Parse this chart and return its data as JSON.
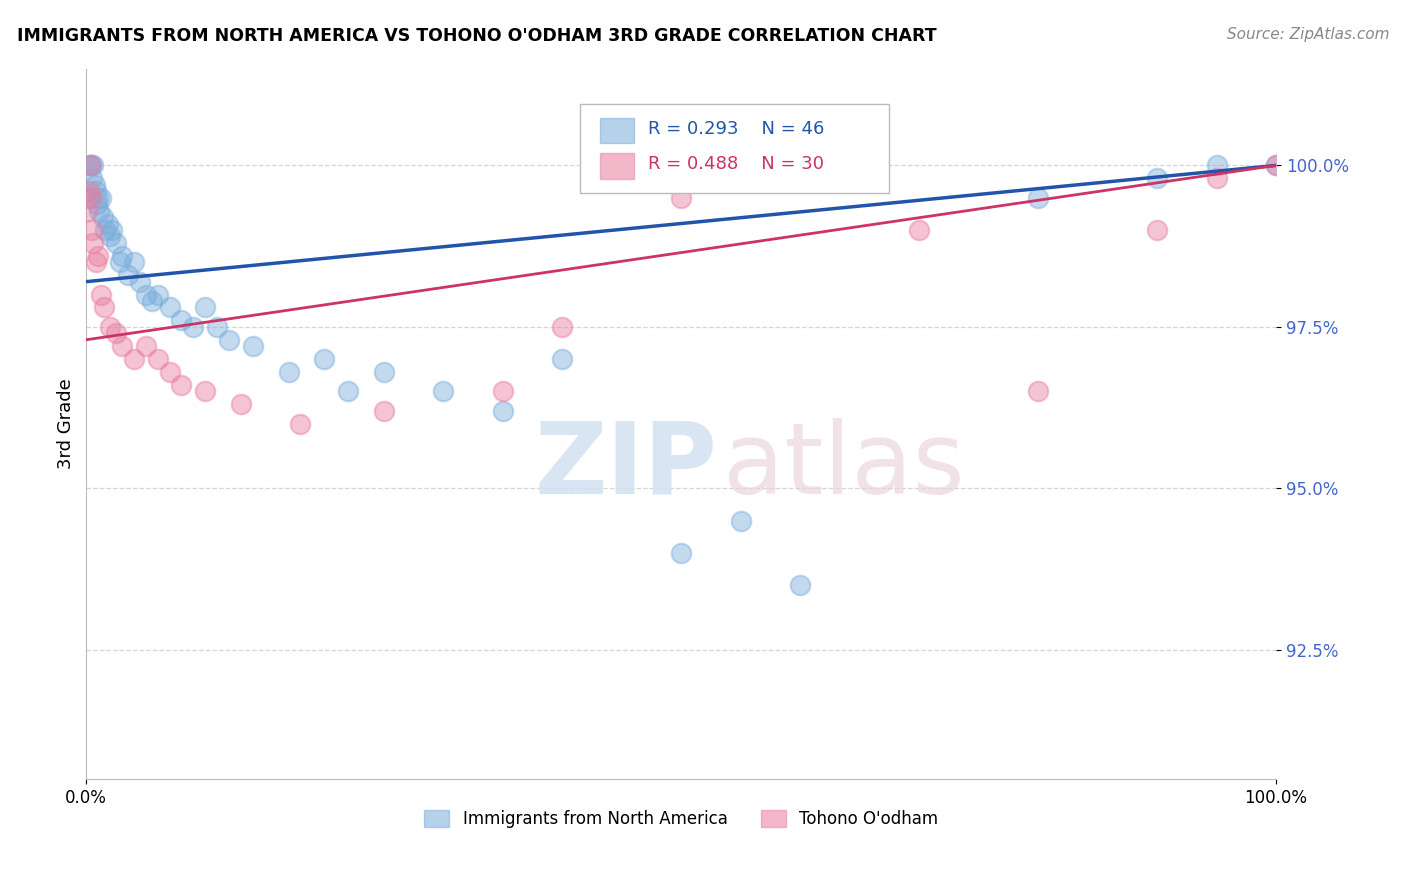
{
  "title": "IMMIGRANTS FROM NORTH AMERICA VS TOHONO O'ODHAM 3RD GRADE CORRELATION CHART",
  "source": "Source: ZipAtlas.com",
  "ylabel": "3rd Grade",
  "watermark_zip": "ZIP",
  "watermark_atlas": "atlas",
  "legend_blue_R": "R = 0.293",
  "legend_blue_N": "N = 46",
  "legend_pink_R": "R = 0.488",
  "legend_pink_N": "N = 30",
  "legend_blue_label": "Immigrants from North America",
  "legend_pink_label": "Tohono O'odham",
  "xlim": [
    0.0,
    100.0
  ],
  "ylim": [
    90.5,
    101.5
  ],
  "yticks": [
    92.5,
    95.0,
    97.5,
    100.0
  ],
  "ytick_labels": [
    "92.5%",
    "95.0%",
    "97.5%",
    "100.0%"
  ],
  "blue_color": "#7aaddb",
  "pink_color": "#e87ea0",
  "blue_line_color": "#2255aa",
  "pink_line_color": "#cc3366",
  "background": "#ffffff",
  "grid_color": "#cccccc",
  "blue_x": [
    0.2,
    0.3,
    0.4,
    0.5,
    0.6,
    0.7,
    0.8,
    0.9,
    1.0,
    1.1,
    1.2,
    1.4,
    1.6,
    1.8,
    2.0,
    2.2,
    2.5,
    2.8,
    3.0,
    3.5,
    4.0,
    4.5,
    5.0,
    5.5,
    6.0,
    7.0,
    8.0,
    9.0,
    10.0,
    11.0,
    12.0,
    14.0,
    17.0,
    20.0,
    22.0,
    25.0,
    30.0,
    35.0,
    40.0,
    50.0,
    55.0,
    60.0,
    80.0,
    90.0,
    95.0,
    100.0
  ],
  "blue_y": [
    99.5,
    100.0,
    100.0,
    99.8,
    100.0,
    99.7,
    99.6,
    99.4,
    99.5,
    99.3,
    99.5,
    99.2,
    99.0,
    99.1,
    98.9,
    99.0,
    98.8,
    98.5,
    98.6,
    98.3,
    98.5,
    98.2,
    98.0,
    97.9,
    98.0,
    97.8,
    97.6,
    97.5,
    97.8,
    97.5,
    97.3,
    97.2,
    96.8,
    97.0,
    96.5,
    96.8,
    96.5,
    96.2,
    97.0,
    94.0,
    94.5,
    93.5,
    99.5,
    99.8,
    100.0,
    100.0
  ],
  "pink_x": [
    0.1,
    0.2,
    0.3,
    0.4,
    0.5,
    0.6,
    0.8,
    1.0,
    1.2,
    1.5,
    2.0,
    2.5,
    3.0,
    4.0,
    5.0,
    6.0,
    7.0,
    8.0,
    10.0,
    13.0,
    18.0,
    25.0,
    35.0,
    40.0,
    50.0,
    70.0,
    80.0,
    90.0,
    95.0,
    100.0
  ],
  "pink_y": [
    99.3,
    99.6,
    100.0,
    99.5,
    99.0,
    98.8,
    98.5,
    98.6,
    98.0,
    97.8,
    97.5,
    97.4,
    97.2,
    97.0,
    97.2,
    97.0,
    96.8,
    96.6,
    96.5,
    96.3,
    96.0,
    96.2,
    96.5,
    97.5,
    99.5,
    99.0,
    96.5,
    99.0,
    99.8,
    100.0
  ],
  "blue_trend_x": [
    0.0,
    100.0
  ],
  "blue_trend_y": [
    98.2,
    100.0
  ],
  "pink_trend_x": [
    0.0,
    100.0
  ],
  "pink_trend_y": [
    97.3,
    100.0
  ]
}
